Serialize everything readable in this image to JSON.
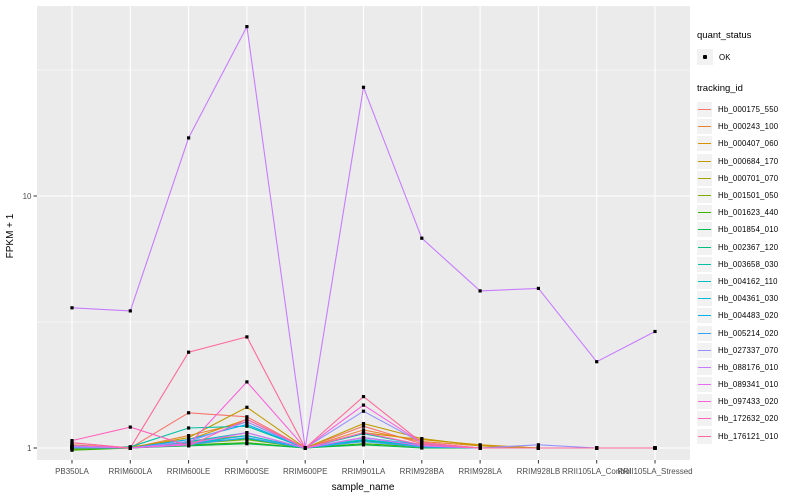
{
  "chart_data": {
    "type": "line",
    "title": "",
    "xlabel": "sample_name",
    "ylabel": "FPKM + 1",
    "x_categories": [
      "PB350LA",
      "RRIM600LA",
      "RRIM600LE",
      "RRIM600SE",
      "RRIM600PE",
      "RRIM901LA",
      "RRIM928BA",
      "RRIM928LA",
      "RRIM928LB",
      "RRII105LA_Control",
      "RRII105LA_Stressed"
    ],
    "y_scale": "log10",
    "y_tick_labels": [
      "1",
      "10"
    ],
    "y_tick_values": [
      1,
      10
    ],
    "y_minor_values": [
      3.1623,
      31.623
    ],
    "ylim": [
      0.9,
      56
    ],
    "grid": true,
    "panel_bg": "#EBEBEB",
    "grid_color": "#FFFFFF",
    "point_color": "#000000",
    "axis_text_color": "#4D4D4D",
    "legend_key_bg": "#F2F2F2",
    "legend": {
      "quant_status_title": "quant_status",
      "quant_status_items": [
        {
          "label": "OK",
          "marker": "point-icon"
        }
      ],
      "tracking_id_title": "tracking_id"
    },
    "series": [
      {
        "name": "Hb_000175_550",
        "color": "#F8766D",
        "values": [
          1.02,
          1.0,
          1.38,
          1.33,
          1.0,
          1.22,
          1.04,
          1.0,
          1.0,
          1.0,
          1.0
        ]
      },
      {
        "name": "Hb_000243_100",
        "color": "#EA8331",
        "values": [
          1.03,
          1.0,
          1.12,
          1.27,
          1.0,
          1.18,
          1.06,
          1.02,
          1.0,
          1.0,
          1.0
        ]
      },
      {
        "name": "Hb_000407_060",
        "color": "#D89000",
        "values": [
          1.0,
          1.01,
          1.08,
          1.3,
          1.0,
          1.15,
          1.08,
          1.03,
          1.0,
          1.0,
          1.0
        ]
      },
      {
        "name": "Hb_000684_170",
        "color": "#C09B00",
        "values": [
          1.01,
          1.0,
          1.1,
          1.45,
          1.0,
          1.25,
          1.09,
          1.02,
          1.0,
          1.0,
          1.0
        ]
      },
      {
        "name": "Hb_000701_070",
        "color": "#A3A500",
        "values": [
          1.0,
          1.0,
          1.06,
          1.12,
          1.0,
          1.08,
          1.02,
          1.0,
          1.0,
          1.0,
          1.0
        ]
      },
      {
        "name": "Hb_001501_050",
        "color": "#7CAE00",
        "values": [
          0.99,
          1.0,
          1.04,
          1.08,
          1.0,
          1.06,
          1.02,
          1.0,
          1.0,
          1.0,
          1.0
        ]
      },
      {
        "name": "Hb_001623_440",
        "color": "#39B600",
        "values": [
          0.98,
          1.0,
          1.03,
          1.05,
          1.0,
          1.04,
          1.01,
          1.0,
          1.0,
          1.0,
          1.0
        ]
      },
      {
        "name": "Hb_001854_010",
        "color": "#00BB4E",
        "values": [
          1.0,
          1.0,
          1.02,
          1.04,
          1.0,
          1.03,
          1.0,
          1.0,
          1.0,
          1.0,
          1.0
        ]
      },
      {
        "name": "Hb_002367_120",
        "color": "#00BF7D",
        "values": [
          1.01,
          1.0,
          1.05,
          1.09,
          1.0,
          1.07,
          1.02,
          1.0,
          1.0,
          1.0,
          1.0
        ]
      },
      {
        "name": "Hb_003658_030",
        "color": "#00C1A3",
        "values": [
          1.0,
          1.01,
          1.2,
          1.22,
          1.0,
          1.14,
          1.03,
          1.0,
          1.0,
          1.0,
          1.0
        ]
      },
      {
        "name": "Hb_004162_110",
        "color": "#00BFC4",
        "values": [
          1.0,
          1.0,
          1.06,
          1.15,
          1.0,
          1.1,
          1.02,
          1.0,
          1.0,
          1.0,
          1.0
        ]
      },
      {
        "name": "Hb_004361_030",
        "color": "#00BAE0",
        "values": [
          1.01,
          1.0,
          1.04,
          1.12,
          1.0,
          1.08,
          1.02,
          1.0,
          1.0,
          1.0,
          1.0
        ]
      },
      {
        "name": "Hb_004483_020",
        "color": "#00B0F6",
        "values": [
          1.02,
          1.0,
          1.08,
          1.24,
          1.0,
          1.1,
          1.03,
          1.0,
          1.0,
          1.0,
          1.0
        ]
      },
      {
        "name": "Hb_005214_020",
        "color": "#35A2FF",
        "values": [
          1.0,
          1.0,
          1.03,
          1.1,
          1.0,
          1.06,
          1.01,
          1.0,
          1.0,
          1.0,
          1.0
        ]
      },
      {
        "name": "Hb_027337_070",
        "color": "#9590FF",
        "values": [
          1.01,
          1.0,
          1.06,
          1.27,
          1.0,
          1.4,
          1.05,
          1.0,
          1.03,
          1.0,
          1.0
        ]
      },
      {
        "name": "Hb_088176_010",
        "color": "#C77CFF",
        "values": [
          3.6,
          3.5,
          17.0,
          47.0,
          1.0,
          27.0,
          6.8,
          4.2,
          4.3,
          2.2,
          2.9
        ]
      },
      {
        "name": "Hb_089341_010",
        "color": "#E76BF3",
        "values": [
          1.02,
          1.0,
          1.04,
          1.15,
          1.0,
          1.1,
          1.02,
          1.0,
          1.0,
          1.0,
          1.0
        ]
      },
      {
        "name": "Hb_097433_020",
        "color": "#FA62DB",
        "values": [
          1.05,
          1.0,
          1.03,
          1.83,
          1.0,
          1.48,
          1.05,
          1.0,
          1.0,
          1.0,
          1.0
        ]
      },
      {
        "name": "Hb_172632_020",
        "color": "#FF62BC",
        "values": [
          1.07,
          1.21,
          1.02,
          1.3,
          1.0,
          1.15,
          1.03,
          1.0,
          1.0,
          1.0,
          1.0
        ]
      },
      {
        "name": "Hb_176121_010",
        "color": "#FF6A98",
        "values": [
          1.05,
          1.0,
          2.4,
          2.76,
          1.0,
          1.6,
          1.05,
          1.0,
          1.0,
          1.0,
          1.0
        ]
      }
    ]
  }
}
